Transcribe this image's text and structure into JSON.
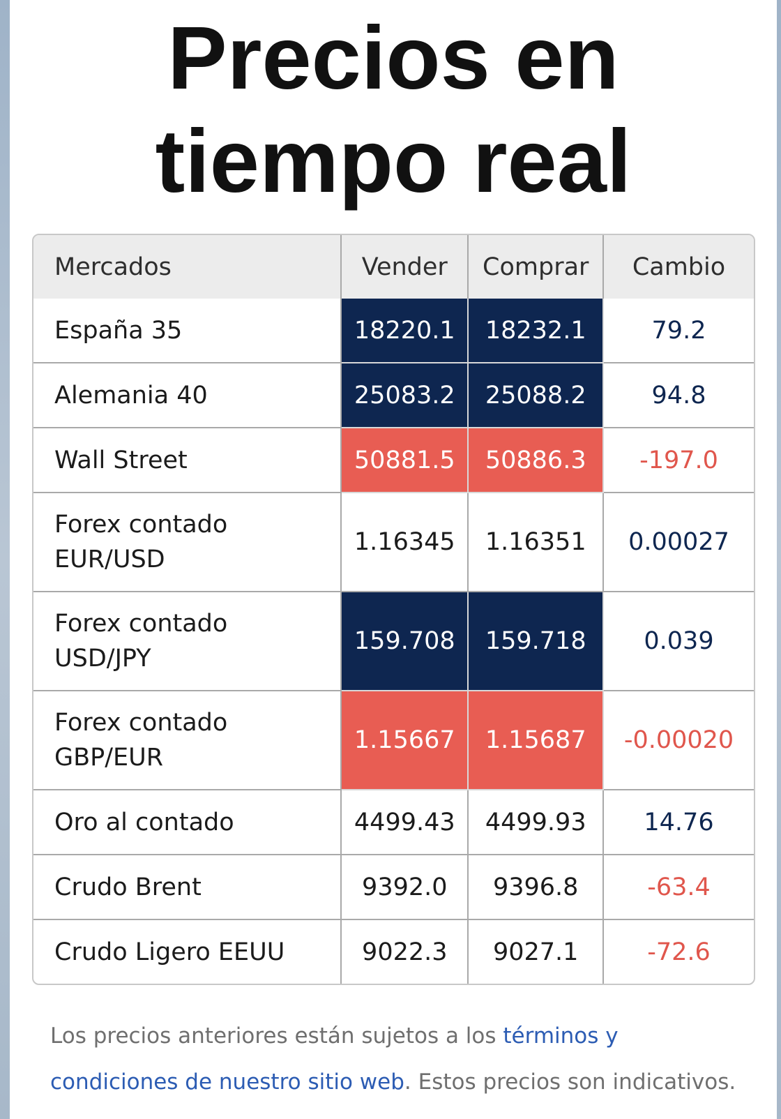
{
  "title": "Precios en tiempo real",
  "table": {
    "headers": [
      "Mercados",
      "Vender",
      "Comprar",
      "Cambio"
    ],
    "rows": [
      {
        "market": "España 35",
        "sell": "18220.1",
        "buy": "18232.1",
        "change": "79.2",
        "bg": "#0e2650",
        "change_color": "#0e2650"
      },
      {
        "market": "Alemania 40",
        "sell": "25083.2",
        "buy": "25088.2",
        "change": "94.8",
        "bg": "#0e2650",
        "change_color": "#0e2650"
      },
      {
        "market": "Wall Street",
        "sell": "50881.5",
        "buy": "50886.3",
        "change": "-197.0",
        "bg": "#e85d53",
        "change_color": "#e0564c"
      },
      {
        "market": "Forex contado\nEUR/USD",
        "sell": "1.16345",
        "buy": "1.16351",
        "change": "0.00027",
        "bg": null,
        "change_color": "#0e2650"
      },
      {
        "market": "Forex contado\nUSD/JPY",
        "sell": "159.708",
        "buy": "159.718",
        "change": "0.039",
        "bg": "#0e2650",
        "change_color": "#0e2650"
      },
      {
        "market": "Forex contado\nGBP/EUR",
        "sell": "1.15667",
        "buy": "1.15687",
        "change": "-0.00020",
        "bg": "#e85d53",
        "change_color": "#e0564c"
      },
      {
        "market": "Oro al contado",
        "sell": "4499.43",
        "buy": "4499.93",
        "change": "14.76",
        "bg": null,
        "change_color": "#0e2650"
      },
      {
        "market": "Crudo Brent",
        "sell": "9392.0",
        "buy": "9396.8",
        "change": "-63.4",
        "bg": null,
        "change_color": "#e0564c"
      },
      {
        "market": "Crudo Ligero EEUU",
        "sell": "9022.3",
        "buy": "9027.1",
        "change": "-72.6",
        "bg": null,
        "change_color": "#e0564c"
      }
    ]
  },
  "footer": {
    "text_1": "Los precios anteriores están sujetos a los ",
    "link": "términos y condiciones de nuestro sitio web",
    "text_2": ". Estos precios son indicativos."
  }
}
